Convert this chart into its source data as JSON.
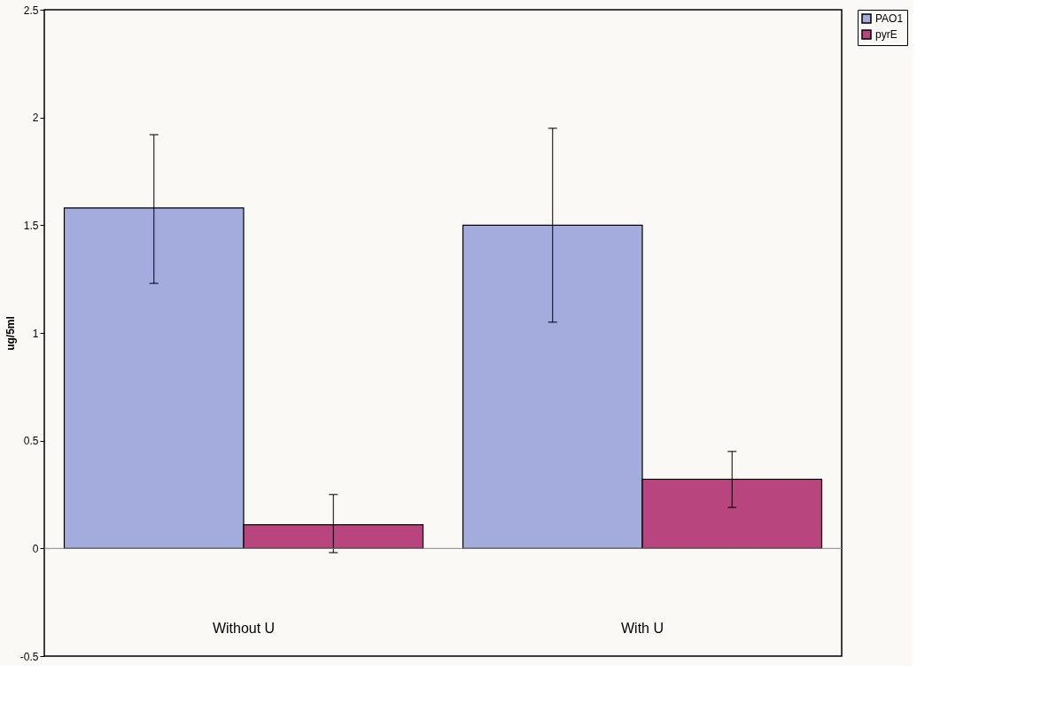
{
  "chart_data": {
    "type": "bar",
    "ylabel": "ug/5ml",
    "categories": [
      "Without U",
      "With U"
    ],
    "series": [
      {
        "name": "PAO1",
        "color": "#a3acdc",
        "values": [
          1.58,
          1.5
        ],
        "errors": [
          [
            1.23,
            1.92
          ],
          [
            1.05,
            1.95
          ]
        ]
      },
      {
        "name": "pyrE",
        "color": "#b8457e",
        "values": [
          0.11,
          0.32
        ],
        "errors": [
          [
            -0.02,
            0.25
          ],
          [
            0.19,
            0.45
          ]
        ]
      }
    ],
    "ylim": [
      -0.5,
      2.5
    ],
    "yticks": [
      -0.5,
      0,
      0.5,
      1,
      1.5,
      2,
      2.5
    ],
    "grid": false,
    "legend": "right",
    "ref_lines": [
      {
        "axis": "y",
        "value": 0,
        "color": "#888888"
      }
    ]
  }
}
